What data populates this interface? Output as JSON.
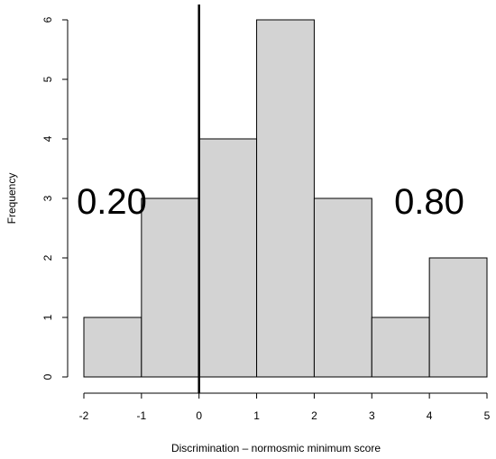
{
  "chart_data": {
    "type": "bar",
    "subtype": "histogram",
    "title": "",
    "xlabel": "Discrimination – normosmic minimum score",
    "ylabel": "Frequency",
    "bins": [
      {
        "from": -2,
        "to": -1,
        "count": 1
      },
      {
        "from": -1,
        "to": 0,
        "count": 3
      },
      {
        "from": 0,
        "to": 1,
        "count": 4
      },
      {
        "from": 1,
        "to": 2,
        "count": 6
      },
      {
        "from": 2,
        "to": 3,
        "count": 3
      },
      {
        "from": 3,
        "to": 4,
        "count": 1
      },
      {
        "from": 4,
        "to": 5,
        "count": 2
      }
    ],
    "xlim": [
      -2,
      5
    ],
    "ylim": [
      0,
      6
    ],
    "xticks": [
      "-2",
      "-1",
      "0",
      "1",
      "2",
      "3",
      "4",
      "5"
    ],
    "yticks": [
      "0",
      "1",
      "2",
      "3",
      "4",
      "5",
      "6"
    ],
    "reference_line_x": 0,
    "annotations": [
      {
        "text": "0.20",
        "side": "left"
      },
      {
        "text": "0.80",
        "side": "right"
      }
    ],
    "bar_color": "#d3d3d3",
    "grid": false
  }
}
